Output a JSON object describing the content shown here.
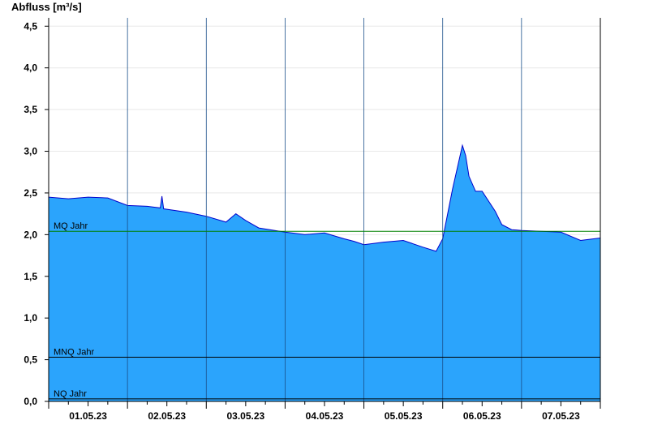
{
  "chart_data": {
    "type": "area",
    "ylabel": "Abfluss [m³/s]",
    "ylim": [
      0,
      4.6
    ],
    "yticks": [
      0,
      0.5,
      1.0,
      1.5,
      2.0,
      2.5,
      3.0,
      3.5,
      4.0,
      4.5
    ],
    "ytick_labels": [
      "0,0",
      "0,5",
      "1,0",
      "1,5",
      "2,0",
      "2,5",
      "3,0",
      "3,5",
      "4,0",
      "4,5"
    ],
    "x_start": "01.05.23 00:00",
    "x_end": "07.05.23 24:00",
    "xtick_labels": [
      "01.05.23",
      "02.05.23",
      "03.05.23",
      "04.05.23",
      "05.05.23",
      "06.05.23",
      "07.05.23"
    ],
    "grid": true,
    "series": [
      {
        "color": "#2ba4fc",
        "line_color": "#0000cc",
        "x": [
          "01.05.23 00:00",
          "01.05.23 06:00",
          "01.05.23 12:00",
          "01.05.23 18:00",
          "02.05.23 00:00",
          "02.05.23 06:00",
          "02.05.23 10:00",
          "02.05.23 10:30",
          "02.05.23 11:00",
          "02.05.23 18:00",
          "03.05.23 00:00",
          "03.05.23 06:00",
          "03.05.23 09:00",
          "03.05.23 12:00",
          "03.05.23 16:00",
          "04.05.23 00:00",
          "04.05.23 06:00",
          "04.05.23 12:00",
          "04.05.23 18:00",
          "04.05.23 21:00",
          "05.05.23 00:00",
          "05.05.23 06:00",
          "05.05.23 12:00",
          "05.05.23 18:00",
          "05.05.23 22:00",
          "06.05.23 00:00",
          "06.05.23 03:00",
          "06.05.23 06:00",
          "06.05.23 07:00",
          "06.05.23 08:00",
          "06.05.23 10:00",
          "06.05.23 12:00",
          "06.05.23 16:00",
          "06.05.23 18:00",
          "06.05.23 21:00",
          "07.05.23 00:00",
          "07.05.23 06:00",
          "07.05.23 12:00",
          "07.05.23 18:00",
          "07.05.23 24:00"
        ],
        "values": [
          2.45,
          2.43,
          2.45,
          2.44,
          2.35,
          2.34,
          2.32,
          2.46,
          2.31,
          2.27,
          2.22,
          2.15,
          2.25,
          2.17,
          2.08,
          2.03,
          2.0,
          2.02,
          1.95,
          1.92,
          1.88,
          1.91,
          1.93,
          1.85,
          1.8,
          1.95,
          2.55,
          3.07,
          2.95,
          2.7,
          2.52,
          2.52,
          2.28,
          2.12,
          2.06,
          2.05,
          2.04,
          2.03,
          1.93,
          1.96
        ]
      }
    ],
    "reference_lines": [
      {
        "label": "MQ Jahr",
        "value": 2.04,
        "color": "#008000"
      },
      {
        "label": "MNQ Jahr",
        "value": 0.53,
        "color": "#000000"
      },
      {
        "label": "NQ Jahr",
        "value": 0.03,
        "color": "#000000"
      }
    ]
  }
}
